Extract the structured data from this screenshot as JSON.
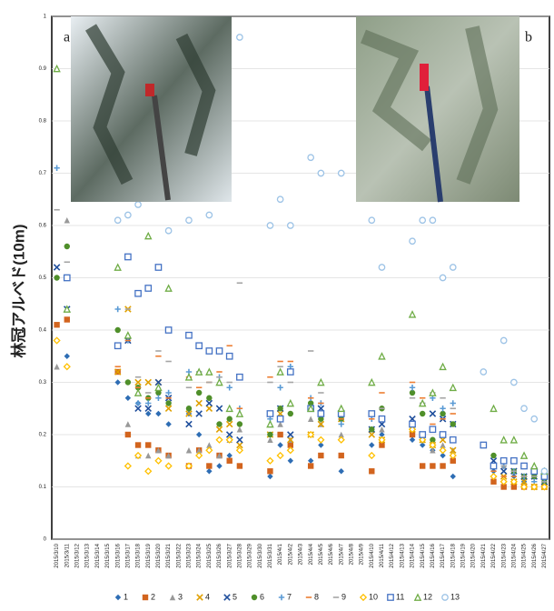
{
  "chart_data": {
    "type": "scatter",
    "y_label": "林冠アルベド(10m)",
    "annotations": [
      "a",
      "b"
    ],
    "categories": [
      "2015/3/10",
      "2015/3/11",
      "2015/3/12",
      "2015/3/13",
      "2015/3/14",
      "2015/3/15",
      "2015/3/16",
      "2015/3/17",
      "2015/3/18",
      "2015/3/19",
      "2015/3/20",
      "2015/3/21",
      "2015/3/22",
      "2015/3/23",
      "2015/3/24",
      "2015/3/25",
      "2015/3/26",
      "2015/3/27",
      "2015/3/28",
      "2015/3/29",
      "2015/3/30",
      "2015/3/31",
      "2015/4/1",
      "2015/4/2",
      "2015/4/3",
      "2015/4/4",
      "2015/4/5",
      "2015/4/6",
      "2015/4/7",
      "2015/4/8",
      "2015/4/9",
      "2015/4/10",
      "2015/4/11",
      "2015/4/12",
      "2015/4/13",
      "2015/4/14",
      "2015/4/15",
      "2015/4/16",
      "2015/4/17",
      "2015/4/18",
      "2015/4/19",
      "2015/4/20",
      "2015/4/21",
      "2015/4/22",
      "2015/4/23",
      "2015/4/24",
      "2015/4/25",
      "2015/4/26",
      "2015/4/27"
    ],
    "ylim": [
      0,
      1
    ],
    "yticks": [
      0,
      0.1,
      0.2,
      0.3,
      0.4,
      0.5,
      0.6,
      0.7,
      0.8,
      0.9,
      1
    ],
    "grid": true,
    "series": [
      {
        "name": "1",
        "color": "#2e6db4",
        "marker": "diamond",
        "values": [
          null,
          0.35,
          null,
          null,
          null,
          null,
          0.3,
          0.27,
          0.26,
          0.24,
          0.24,
          0.22,
          null,
          0.24,
          0.2,
          0.13,
          0.14,
          0.16,
          0.17,
          null,
          null,
          0.12,
          0.18,
          0.15,
          null,
          0.15,
          0.18,
          null,
          0.13,
          null,
          null,
          0.18,
          0.2,
          null,
          null,
          0.19,
          0.18,
          0.17,
          0.16,
          0.12,
          null,
          null,
          null,
          0.13,
          0.11,
          0.12,
          0.11,
          0.1,
          0.1
        ]
      },
      {
        "name": "2",
        "color": "#d2641e",
        "marker": "square",
        "values": [
          0.41,
          0.42,
          null,
          null,
          null,
          null,
          0.32,
          0.2,
          0.18,
          0.18,
          0.17,
          0.16,
          null,
          0.14,
          0.17,
          0.14,
          0.16,
          0.15,
          0.14,
          null,
          null,
          0.13,
          0.2,
          0.18,
          null,
          0.14,
          0.16,
          null,
          0.16,
          null,
          null,
          0.13,
          0.18,
          null,
          null,
          0.2,
          0.14,
          0.14,
          0.14,
          0.15,
          null,
          null,
          null,
          0.11,
          0.1,
          0.1,
          0.1,
          0.1,
          0.1
        ]
      },
      {
        "name": "3",
        "color": "#999999",
        "marker": "triangle",
        "values": [
          0.33,
          0.61,
          null,
          null,
          null,
          null,
          0.37,
          0.22,
          0.16,
          0.16,
          0.17,
          0.16,
          null,
          0.17,
          0.17,
          0.18,
          0.16,
          0.19,
          0.21,
          null,
          null,
          0.19,
          0.22,
          0.19,
          null,
          0.23,
          0.22,
          null,
          0.2,
          null,
          null,
          0.21,
          0.21,
          null,
          null,
          0.22,
          0.19,
          0.17,
          0.18,
          0.17,
          null,
          null,
          null,
          0.14,
          0.14,
          0.13,
          0.12,
          0.12,
          0.11
        ]
      },
      {
        "name": "4",
        "color": "#e0a000",
        "marker": "x",
        "values": [
          null,
          null,
          null,
          null,
          null,
          null,
          0.32,
          0.44,
          0.3,
          0.3,
          0.3,
          0.25,
          null,
          0.24,
          0.26,
          0.25,
          0.21,
          0.22,
          0.18,
          null,
          null,
          0.2,
          0.24,
          0.19,
          null,
          0.2,
          0.22,
          null,
          0.23,
          null,
          null,
          0.2,
          0.19,
          null,
          null,
          0.21,
          0.19,
          0.18,
          0.19,
          0.17,
          null,
          null,
          null,
          0.14,
          0.12,
          0.11,
          0.11,
          0.1,
          0.1
        ]
      },
      {
        "name": "5",
        "color": "#1f4e9c",
        "marker": "x",
        "values": [
          0.52,
          0.44,
          null,
          null,
          null,
          null,
          0.37,
          0.38,
          0.25,
          0.25,
          0.3,
          0.27,
          null,
          0.22,
          0.24,
          0.26,
          0.25,
          0.2,
          0.19,
          null,
          null,
          0.24,
          0.25,
          0.2,
          null,
          0.25,
          0.25,
          null,
          0.24,
          null,
          null,
          0.21,
          0.22,
          null,
          null,
          0.23,
          0.2,
          0.24,
          0.23,
          0.22,
          null,
          null,
          null,
          0.15,
          0.13,
          0.13,
          0.12,
          0.12,
          0.11
        ]
      },
      {
        "name": "6",
        "color": "#4f8f2a",
        "marker": "circle",
        "values": [
          0.5,
          0.56,
          null,
          null,
          null,
          null,
          0.4,
          0.3,
          0.29,
          0.27,
          0.28,
          0.26,
          null,
          0.25,
          0.28,
          0.27,
          0.22,
          0.23,
          0.22,
          null,
          null,
          0.2,
          0.25,
          0.24,
          null,
          0.26,
          0.23,
          null,
          0.23,
          null,
          null,
          0.21,
          0.25,
          null,
          null,
          0.28,
          0.24,
          0.19,
          0.24,
          0.22,
          null,
          null,
          null,
          0.16,
          0.15,
          0.13,
          0.12,
          0.12,
          0.11
        ]
      },
      {
        "name": "7",
        "color": "#5b9bd5",
        "marker": "plus",
        "values": [
          0.71,
          null,
          null,
          null,
          null,
          null,
          0.44,
          0.38,
          0.26,
          0.26,
          0.27,
          0.28,
          null,
          0.32,
          0.32,
          0.36,
          0.31,
          0.29,
          0.25,
          null,
          null,
          0.23,
          0.29,
          0.33,
          null,
          0.27,
          0.26,
          null,
          0.22,
          null,
          null,
          0.23,
          0.23,
          null,
          null,
          0.29,
          0.26,
          0.27,
          0.25,
          0.26,
          null,
          null,
          null,
          0.14,
          0.14,
          0.13,
          0.12,
          0.11,
          0.11
        ]
      },
      {
        "name": "8",
        "color": "#ed7d31",
        "marker": "dash",
        "values": [
          null,
          null,
          null,
          null,
          null,
          null,
          0.33,
          0.38,
          0.29,
          0.27,
          0.35,
          0.27,
          null,
          0.31,
          0.29,
          0.3,
          0.32,
          0.37,
          0.25,
          null,
          null,
          0.31,
          0.34,
          0.34,
          null,
          0.27,
          0.26,
          null,
          0.23,
          null,
          null,
          0.23,
          0.28,
          null,
          null,
          0.3,
          0.27,
          0.22,
          0.23,
          0.24,
          null,
          null,
          null,
          0.13,
          0.12,
          0.12,
          0.12,
          0.1,
          0.1
        ]
      },
      {
        "name": "9",
        "color": "#a5a5a5",
        "marker": "dash",
        "values": [
          0.63,
          0.53,
          null,
          null,
          null,
          null,
          0.37,
          0.44,
          0.31,
          0.28,
          0.36,
          0.34,
          null,
          0.29,
          0.32,
          0.3,
          0.31,
          0.3,
          0.49,
          null,
          null,
          0.3,
          0.33,
          0.3,
          null,
          0.36,
          0.28,
          null,
          0.24,
          null,
          null,
          0.24,
          0.25,
          null,
          null,
          0.27,
          0.26,
          0.28,
          0.27,
          0.25,
          null,
          null,
          null,
          0.14,
          0.14,
          0.13,
          0.12,
          0.12,
          0.11
        ]
      },
      {
        "name": "10",
        "color": "#ffc000",
        "marker": "open-diamond",
        "values": [
          0.38,
          0.33,
          null,
          null,
          null,
          null,
          null,
          0.14,
          0.16,
          0.13,
          0.15,
          0.14,
          null,
          0.14,
          0.16,
          0.17,
          0.19,
          0.19,
          0.17,
          null,
          null,
          0.15,
          0.16,
          0.17,
          null,
          0.2,
          0.19,
          null,
          0.19,
          null,
          null,
          0.16,
          0.19,
          null,
          null,
          0.21,
          0.19,
          0.18,
          0.17,
          0.16,
          null,
          null,
          null,
          0.12,
          0.11,
          0.11,
          0.1,
          0.1,
          0.1
        ]
      },
      {
        "name": "11",
        "color": "#4472c4",
        "marker": "open-square",
        "values": [
          null,
          0.5,
          null,
          null,
          null,
          null,
          0.37,
          0.54,
          0.47,
          0.48,
          0.52,
          0.4,
          null,
          0.39,
          0.37,
          0.36,
          0.36,
          0.35,
          0.31,
          null,
          null,
          0.24,
          0.23,
          0.32,
          null,
          0.25,
          0.24,
          null,
          0.24,
          null,
          null,
          0.24,
          0.23,
          null,
          null,
          0.22,
          0.2,
          0.21,
          0.2,
          0.19,
          null,
          null,
          0.18,
          0.14,
          0.15,
          0.15,
          0.14,
          0.13,
          0.12
        ]
      },
      {
        "name": "12",
        "color": "#70ad47",
        "marker": "open-triangle",
        "values": [
          0.9,
          0.44,
          null,
          null,
          null,
          null,
          0.52,
          0.39,
          0.28,
          0.58,
          0.29,
          0.48,
          null,
          0.31,
          0.32,
          0.32,
          0.3,
          0.25,
          0.24,
          null,
          null,
          0.22,
          0.32,
          0.26,
          null,
          0.25,
          0.3,
          null,
          0.25,
          null,
          null,
          0.3,
          0.35,
          null,
          null,
          0.43,
          0.26,
          0.28,
          0.33,
          0.29,
          null,
          null,
          null,
          0.25,
          0.19,
          0.19,
          0.16,
          0.14,
          0.13
        ]
      },
      {
        "name": "13",
        "color": "#9dc3e6",
        "marker": "open-circle",
        "values": [
          null,
          null,
          null,
          null,
          null,
          null,
          0.61,
          0.62,
          0.64,
          null,
          null,
          0.59,
          null,
          0.61,
          null,
          0.62,
          null,
          null,
          0.96,
          null,
          null,
          0.6,
          0.65,
          0.6,
          null,
          0.73,
          0.7,
          null,
          0.7,
          null,
          null,
          0.61,
          0.52,
          null,
          null,
          0.57,
          0.61,
          0.61,
          0.5,
          0.52,
          null,
          null,
          0.32,
          null,
          0.38,
          0.3,
          0.25,
          0.23,
          0.13
        ]
      }
    ]
  }
}
